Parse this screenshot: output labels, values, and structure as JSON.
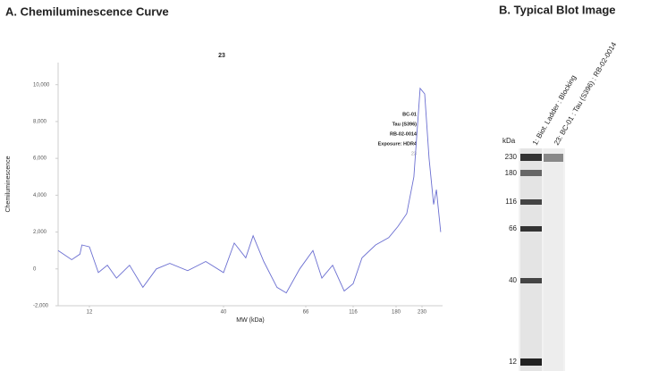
{
  "panel_a": {
    "title": "A. Chemiluminescence Curve"
  },
  "chart_data": {
    "type": "line",
    "title": "23",
    "x_label": "MW (kDa)",
    "y_label": "Chemiluminescence",
    "annotation": [
      "BC-01",
      "Tau (S396)",
      "RB-02-0014",
      "Exposure: HDR4",
      "23"
    ],
    "x": [
      9,
      10.2,
      11.0,
      11.2,
      12.0,
      13.0,
      14.1,
      15.3,
      17.2,
      19.4,
      21.9,
      24.7,
      29.0,
      34.1,
      40,
      42.7,
      45.8,
      47.9,
      51.1,
      55.4,
      58.6,
      63.6,
      71.9,
      79.9,
      90.8,
      104.3,
      116,
      127,
      146,
      167,
      183,
      199,
      213,
      226,
      236,
      246,
      257,
      264,
      275
    ],
    "series": [
      {
        "name": "23",
        "color": "#6b6fd1",
        "values": [
          1000,
          500,
          800,
          1300,
          1200,
          -200,
          200,
          -500,
          200,
          -1000,
          0,
          300,
          -100,
          400,
          -200,
          1400,
          600,
          1800,
          400,
          -1000,
          -1300,
          0,
          1000,
          -500,
          200,
          -1200,
          -800,
          600,
          1300,
          1700,
          2300,
          3000,
          5000,
          9800,
          9500,
          6000,
          3500,
          4300,
          2000
        ]
      }
    ],
    "xlim": [
      9,
      280
    ],
    "xticks": [
      12,
      40,
      66,
      116,
      180,
      230
    ],
    "ylim": [
      -2000,
      11200
    ],
    "yticks": [
      {
        "value": -2000,
        "label": "-2,000"
      },
      0,
      {
        "value": 2000,
        "label": "2,000"
      },
      {
        "value": 4000,
        "label": "4,000"
      },
      {
        "value": 6000,
        "label": "6,000"
      },
      {
        "value": 8000,
        "label": "8,000"
      },
      {
        "value": 10000,
        "label": "10,000"
      }
    ],
    "grid": false
  },
  "panel_b": {
    "title": "B. Typical Blot Image",
    "lanes": [
      "1: Biot. Ladder : Blocking",
      "23: BC-01 : Tau (S396) : RB-02-0014"
    ],
    "unit": "kDa",
    "ladder": [
      "230",
      "180",
      "116",
      "66",
      "40",
      "12"
    ]
  }
}
